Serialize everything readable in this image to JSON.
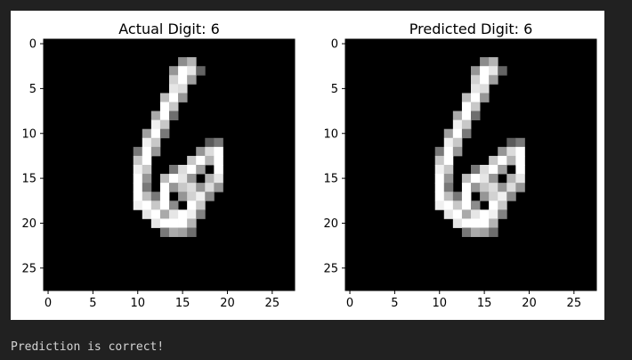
{
  "output_text": "Prediction is correct!",
  "colors": {
    "background": "#212121",
    "figure": "#ffffff",
    "output_text": "#d4d4d4"
  },
  "chart_data": [
    {
      "type": "heatmap",
      "title": "Actual Digit: 6",
      "cmap": "gray",
      "xlim": [
        -0.5,
        27.5
      ],
      "ylim": [
        27.5,
        -0.5
      ],
      "xticks": [
        0,
        5,
        10,
        15,
        20,
        25
      ],
      "yticks": [
        0,
        5,
        10,
        15,
        20,
        25
      ],
      "xtick_labels": [
        "0",
        "5",
        "10",
        "15",
        "20",
        "25"
      ],
      "ytick_labels": [
        "0",
        "5",
        "10",
        "15",
        "20",
        "25"
      ],
      "pixels": [
        [
          2,
          15,
          140
        ],
        [
          2,
          16,
          180
        ],
        [
          3,
          14,
          150
        ],
        [
          3,
          15,
          255
        ],
        [
          3,
          16,
          230
        ],
        [
          3,
          17,
          100
        ],
        [
          4,
          14,
          210
        ],
        [
          4,
          15,
          255
        ],
        [
          4,
          16,
          160
        ],
        [
          5,
          14,
          230
        ],
        [
          5,
          15,
          220
        ],
        [
          6,
          13,
          190
        ],
        [
          6,
          14,
          255
        ],
        [
          6,
          15,
          150
        ],
        [
          7,
          13,
          255
        ],
        [
          7,
          14,
          200
        ],
        [
          8,
          12,
          170
        ],
        [
          8,
          13,
          255
        ],
        [
          8,
          14,
          110
        ],
        [
          9,
          12,
          240
        ],
        [
          9,
          13,
          200
        ],
        [
          10,
          11,
          160
        ],
        [
          10,
          12,
          255
        ],
        [
          10,
          13,
          120
        ],
        [
          11,
          11,
          240
        ],
        [
          11,
          12,
          200
        ],
        [
          11,
          18,
          90
        ],
        [
          11,
          19,
          120
        ],
        [
          12,
          10,
          120
        ],
        [
          12,
          11,
          255
        ],
        [
          12,
          12,
          150
        ],
        [
          12,
          17,
          150
        ],
        [
          12,
          18,
          220
        ],
        [
          12,
          19,
          255
        ],
        [
          13,
          10,
          200
        ],
        [
          13,
          11,
          255
        ],
        [
          13,
          16,
          200
        ],
        [
          13,
          17,
          255
        ],
        [
          13,
          18,
          180
        ],
        [
          13,
          19,
          255
        ],
        [
          14,
          10,
          240
        ],
        [
          14,
          11,
          200
        ],
        [
          14,
          14,
          120
        ],
        [
          14,
          15,
          220
        ],
        [
          14,
          16,
          255
        ],
        [
          14,
          17,
          160
        ],
        [
          14,
          19,
          255
        ],
        [
          15,
          10,
          255
        ],
        [
          15,
          11,
          150
        ],
        [
          15,
          13,
          190
        ],
        [
          15,
          14,
          255
        ],
        [
          15,
          15,
          230
        ],
        [
          15,
          16,
          150
        ],
        [
          15,
          18,
          180
        ],
        [
          15,
          19,
          230
        ],
        [
          16,
          10,
          255
        ],
        [
          16,
          11,
          120
        ],
        [
          16,
          13,
          255
        ],
        [
          16,
          14,
          150
        ],
        [
          16,
          15,
          200
        ],
        [
          16,
          16,
          220
        ],
        [
          16,
          17,
          150
        ],
        [
          16,
          18,
          220
        ],
        [
          16,
          19,
          150
        ],
        [
          17,
          10,
          255
        ],
        [
          17,
          11,
          190
        ],
        [
          17,
          12,
          120
        ],
        [
          17,
          13,
          255
        ],
        [
          17,
          15,
          150
        ],
        [
          17,
          16,
          210
        ],
        [
          17,
          17,
          240
        ],
        [
          17,
          18,
          140
        ],
        [
          18,
          10,
          240
        ],
        [
          18,
          11,
          255
        ],
        [
          18,
          12,
          200
        ],
        [
          18,
          13,
          255
        ],
        [
          18,
          14,
          140
        ],
        [
          18,
          16,
          255
        ],
        [
          18,
          17,
          200
        ],
        [
          19,
          11,
          230
        ],
        [
          19,
          12,
          255
        ],
        [
          19,
          13,
          170
        ],
        [
          19,
          14,
          230
        ],
        [
          19,
          15,
          255
        ],
        [
          19,
          16,
          240
        ],
        [
          19,
          17,
          130
        ],
        [
          20,
          12,
          230
        ],
        [
          20,
          13,
          255
        ],
        [
          20,
          14,
          255
        ],
        [
          20,
          15,
          255
        ],
        [
          20,
          16,
          180
        ],
        [
          21,
          13,
          120
        ],
        [
          21,
          14,
          170
        ],
        [
          21,
          15,
          160
        ],
        [
          21,
          16,
          110
        ]
      ]
    },
    {
      "type": "heatmap",
      "title": "Predicted Digit: 6",
      "cmap": "gray",
      "xlim": [
        -0.5,
        27.5
      ],
      "ylim": [
        27.5,
        -0.5
      ],
      "xticks": [
        0,
        5,
        10,
        15,
        20,
        25
      ],
      "yticks": [
        0,
        5,
        10,
        15,
        20,
        25
      ],
      "xtick_labels": [
        "0",
        "5",
        "10",
        "15",
        "20",
        "25"
      ],
      "ytick_labels": [
        "0",
        "5",
        "10",
        "15",
        "20",
        "25"
      ],
      "pixels": [
        [
          2,
          15,
          140
        ],
        [
          2,
          16,
          180
        ],
        [
          3,
          14,
          150
        ],
        [
          3,
          15,
          255
        ],
        [
          3,
          16,
          230
        ],
        [
          3,
          17,
          100
        ],
        [
          4,
          14,
          210
        ],
        [
          4,
          15,
          255
        ],
        [
          4,
          16,
          160
        ],
        [
          5,
          14,
          230
        ],
        [
          5,
          15,
          220
        ],
        [
          6,
          13,
          190
        ],
        [
          6,
          14,
          255
        ],
        [
          6,
          15,
          150
        ],
        [
          7,
          13,
          255
        ],
        [
          7,
          14,
          200
        ],
        [
          8,
          12,
          170
        ],
        [
          8,
          13,
          255
        ],
        [
          8,
          14,
          110
        ],
        [
          9,
          12,
          240
        ],
        [
          9,
          13,
          200
        ],
        [
          10,
          11,
          160
        ],
        [
          10,
          12,
          255
        ],
        [
          10,
          13,
          120
        ],
        [
          11,
          11,
          240
        ],
        [
          11,
          12,
          200
        ],
        [
          11,
          18,
          90
        ],
        [
          11,
          19,
          120
        ],
        [
          12,
          10,
          120
        ],
        [
          12,
          11,
          255
        ],
        [
          12,
          12,
          150
        ],
        [
          12,
          17,
          150
        ],
        [
          12,
          18,
          220
        ],
        [
          12,
          19,
          255
        ],
        [
          13,
          10,
          200
        ],
        [
          13,
          11,
          255
        ],
        [
          13,
          16,
          200
        ],
        [
          13,
          17,
          255
        ],
        [
          13,
          18,
          180
        ],
        [
          13,
          19,
          255
        ],
        [
          14,
          10,
          240
        ],
        [
          14,
          11,
          200
        ],
        [
          14,
          14,
          120
        ],
        [
          14,
          15,
          220
        ],
        [
          14,
          16,
          255
        ],
        [
          14,
          17,
          160
        ],
        [
          14,
          19,
          255
        ],
        [
          15,
          10,
          255
        ],
        [
          15,
          11,
          150
        ],
        [
          15,
          13,
          190
        ],
        [
          15,
          14,
          255
        ],
        [
          15,
          15,
          230
        ],
        [
          15,
          16,
          150
        ],
        [
          15,
          18,
          180
        ],
        [
          15,
          19,
          230
        ],
        [
          16,
          10,
          255
        ],
        [
          16,
          11,
          120
        ],
        [
          16,
          13,
          255
        ],
        [
          16,
          14,
          150
        ],
        [
          16,
          15,
          200
        ],
        [
          16,
          16,
          220
        ],
        [
          16,
          17,
          150
        ],
        [
          16,
          18,
          220
        ],
        [
          16,
          19,
          150
        ],
        [
          17,
          10,
          255
        ],
        [
          17,
          11,
          190
        ],
        [
          17,
          12,
          120
        ],
        [
          17,
          13,
          255
        ],
        [
          17,
          15,
          150
        ],
        [
          17,
          16,
          210
        ],
        [
          17,
          17,
          240
        ],
        [
          17,
          18,
          140
        ],
        [
          18,
          10,
          240
        ],
        [
          18,
          11,
          255
        ],
        [
          18,
          12,
          200
        ],
        [
          18,
          13,
          255
        ],
        [
          18,
          14,
          140
        ],
        [
          18,
          16,
          255
        ],
        [
          18,
          17,
          200
        ],
        [
          19,
          11,
          230
        ],
        [
          19,
          12,
          255
        ],
        [
          19,
          13,
          170
        ],
        [
          19,
          14,
          230
        ],
        [
          19,
          15,
          255
        ],
        [
          19,
          16,
          240
        ],
        [
          19,
          17,
          130
        ],
        [
          20,
          12,
          230
        ],
        [
          20,
          13,
          255
        ],
        [
          20,
          14,
          255
        ],
        [
          20,
          15,
          255
        ],
        [
          20,
          16,
          180
        ],
        [
          21,
          13,
          120
        ],
        [
          21,
          14,
          170
        ],
        [
          21,
          15,
          160
        ],
        [
          21,
          16,
          110
        ]
      ]
    }
  ]
}
